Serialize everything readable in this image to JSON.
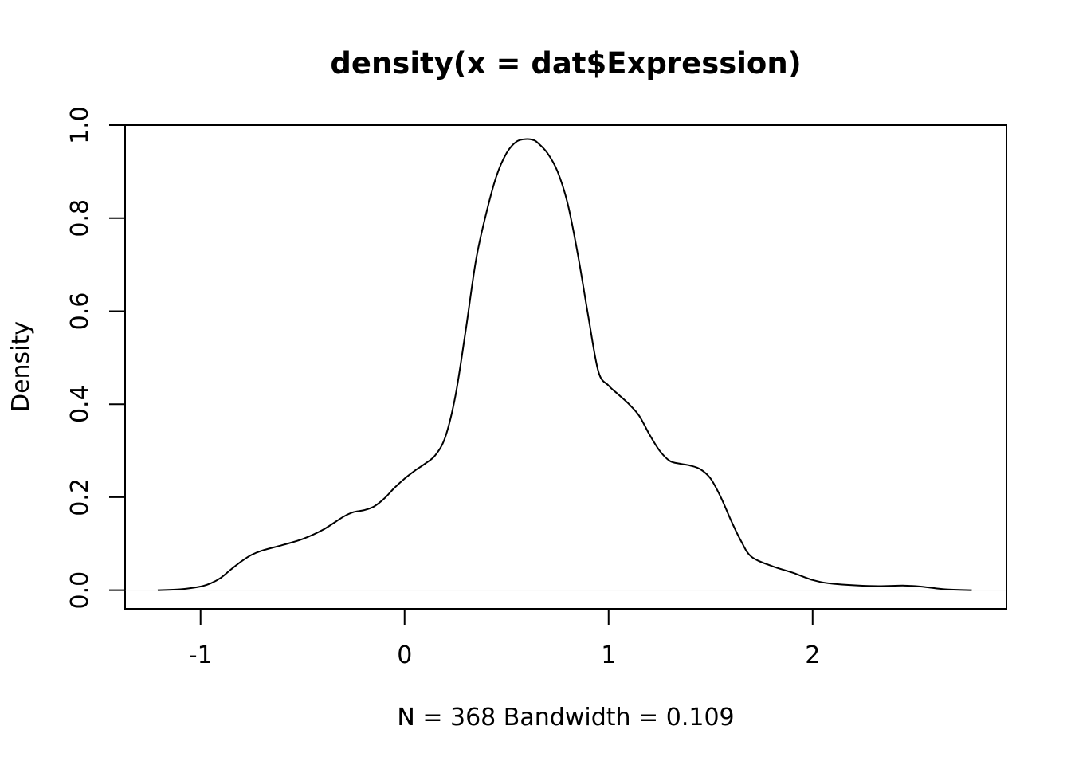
{
  "chart_data": {
    "type": "line",
    "title": "density(x = dat$Expression)",
    "xlabel": "N = 368   Bandwidth = 0.109",
    "ylabel": "Density",
    "xlim": [
      -1.37,
      2.95
    ],
    "ylim": [
      -0.04,
      1.0
    ],
    "x_ticks": [
      -1,
      0,
      1,
      2
    ],
    "x_tick_labels": [
      "-1",
      "0",
      "1",
      "2"
    ],
    "y_ticks": [
      0.0,
      0.2,
      0.4,
      0.6,
      0.8,
      1.0
    ],
    "y_tick_labels": [
      "0.0",
      "0.2",
      "0.4",
      "0.6",
      "0.8",
      "1.0"
    ],
    "grid": false,
    "legend": "none",
    "zero_line_color": "#d9d9d9",
    "line_color": "#000000",
    "series": [
      {
        "x": [
          -1.21,
          -1.1,
          -1.0,
          -0.95,
          -0.9,
          -0.85,
          -0.8,
          -0.75,
          -0.7,
          -0.6,
          -0.5,
          -0.4,
          -0.3,
          -0.25,
          -0.2,
          -0.15,
          -0.1,
          -0.05,
          0.0,
          0.05,
          0.1,
          0.15,
          0.2,
          0.25,
          0.3,
          0.35,
          0.4,
          0.45,
          0.5,
          0.55,
          0.6,
          0.63,
          0.65,
          0.7,
          0.75,
          0.8,
          0.85,
          0.9,
          0.95,
          1.0,
          1.05,
          1.1,
          1.15,
          1.2,
          1.25,
          1.3,
          1.35,
          1.4,
          1.45,
          1.5,
          1.55,
          1.6,
          1.65,
          1.7,
          1.8,
          1.9,
          2.0,
          2.1,
          2.3,
          2.45,
          2.55,
          2.65,
          2.78
        ],
        "y": [
          0.0,
          0.002,
          0.008,
          0.015,
          0.027,
          0.045,
          0.062,
          0.076,
          0.085,
          0.097,
          0.11,
          0.13,
          0.158,
          0.168,
          0.172,
          0.18,
          0.197,
          0.22,
          0.24,
          0.257,
          0.272,
          0.29,
          0.33,
          0.42,
          0.56,
          0.71,
          0.81,
          0.89,
          0.94,
          0.965,
          0.97,
          0.968,
          0.963,
          0.94,
          0.9,
          0.83,
          0.72,
          0.59,
          0.47,
          0.44,
          0.42,
          0.4,
          0.375,
          0.335,
          0.3,
          0.278,
          0.272,
          0.268,
          0.26,
          0.24,
          0.2,
          0.15,
          0.105,
          0.072,
          0.052,
          0.038,
          0.022,
          0.014,
          0.009,
          0.01,
          0.007,
          0.002,
          0.0
        ]
      }
    ]
  }
}
